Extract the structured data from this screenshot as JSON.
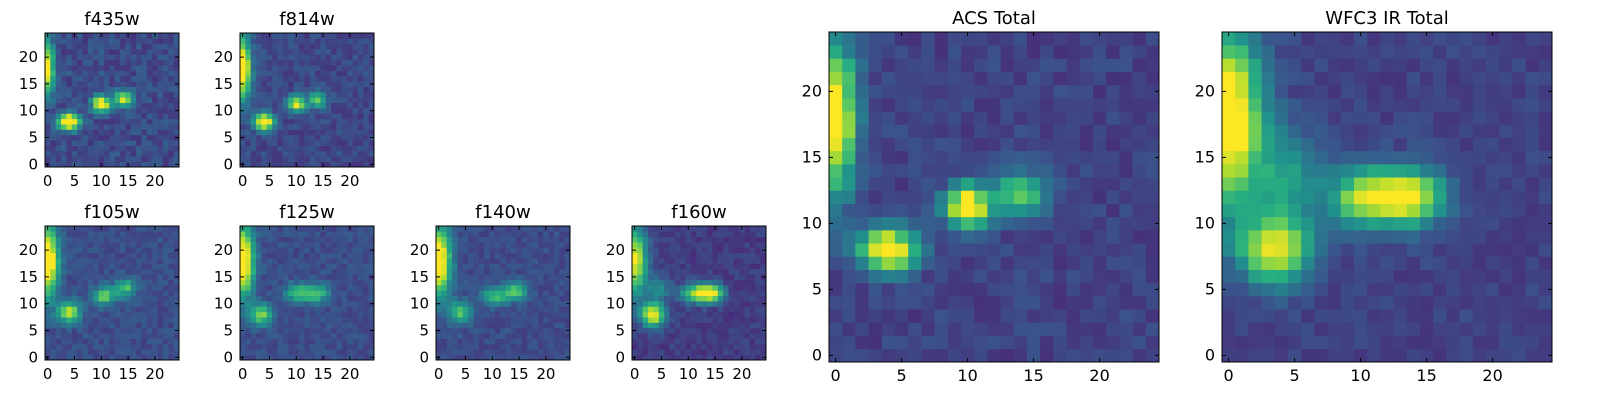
{
  "figure": {
    "colormap": "viridis",
    "colormap_stops": [
      "#440154",
      "#472d7b",
      "#3b528b",
      "#2c728e",
      "#21918c",
      "#28ae80",
      "#5ec962",
      "#addc30",
      "#fde725"
    ]
  },
  "chart_data": [
    {
      "type": "heatmap",
      "title": "f435w",
      "grid_size": 25,
      "grid": false,
      "xticks": [
        "0",
        "5",
        "10",
        "15",
        "20"
      ],
      "yticks": [
        "0",
        "5",
        "10",
        "15",
        "20"
      ],
      "xlim": [
        0,
        25
      ],
      "ylim": [
        0,
        25
      ],
      "psf_sigma": 1.2,
      "background": 0.22,
      "noise": 0.08,
      "sources": [
        {
          "x": 4.5,
          "y": 8.5,
          "amp": 1.0,
          "sx": 1.4,
          "sy": 1.1
        },
        {
          "x": 10.5,
          "y": 11.8,
          "amp": 0.85,
          "sx": 1.2,
          "sy": 1.1
        },
        {
          "x": 14.5,
          "y": 12.8,
          "amp": 0.7,
          "sx": 1.2,
          "sy": 1.1
        },
        {
          "x": 0.3,
          "y": 18.5,
          "amp": 0.8,
          "sx": 1.0,
          "sy": 3.5
        }
      ]
    },
    {
      "type": "heatmap",
      "title": "f814w",
      "grid_size": 25,
      "grid": false,
      "xticks": [
        "0",
        "5",
        "10",
        "15",
        "20"
      ],
      "yticks": [
        "0",
        "5",
        "10",
        "15",
        "20"
      ],
      "xlim": [
        0,
        25
      ],
      "ylim": [
        0,
        25
      ],
      "psf_sigma": 1.2,
      "background": 0.22,
      "noise": 0.07,
      "sources": [
        {
          "x": 4.5,
          "y": 8.5,
          "amp": 0.95,
          "sx": 1.3,
          "sy": 1.1
        },
        {
          "x": 10.5,
          "y": 11.8,
          "amp": 0.75,
          "sx": 1.2,
          "sy": 1.1
        },
        {
          "x": 14.5,
          "y": 12.5,
          "amp": 0.55,
          "sx": 1.2,
          "sy": 1.1
        },
        {
          "x": 0.3,
          "y": 18.5,
          "amp": 1.0,
          "sx": 1.2,
          "sy": 4.0
        }
      ]
    },
    {
      "type": "heatmap",
      "title": "f105w",
      "grid_size": 25,
      "grid": false,
      "xticks": [
        "0",
        "5",
        "10",
        "15",
        "20"
      ],
      "yticks": [
        "0",
        "5",
        "10",
        "15",
        "20"
      ],
      "xlim": [
        0,
        25
      ],
      "ylim": [
        0,
        25
      ],
      "psf_sigma": 1.8,
      "background": 0.25,
      "noise": 0.06,
      "sources": [
        {
          "x": 4.5,
          "y": 9.0,
          "amp": 0.7,
          "sx": 1.5,
          "sy": 1.4
        },
        {
          "x": 11.0,
          "y": 12.0,
          "amp": 0.55,
          "sx": 1.5,
          "sy": 1.2
        },
        {
          "x": 15.0,
          "y": 13.5,
          "amp": 0.5,
          "sx": 1.4,
          "sy": 1.2
        },
        {
          "x": 0.5,
          "y": 18.5,
          "amp": 1.0,
          "sx": 1.4,
          "sy": 4.5
        }
      ]
    },
    {
      "type": "heatmap",
      "title": "f125w",
      "grid_size": 25,
      "grid": false,
      "xticks": [
        "0",
        "5",
        "10",
        "15",
        "20"
      ],
      "yticks": [
        "0",
        "5",
        "10",
        "15",
        "20"
      ],
      "xlim": [
        0,
        25
      ],
      "ylim": [
        0,
        25
      ],
      "psf_sigma": 1.8,
      "background": 0.25,
      "noise": 0.06,
      "sources": [
        {
          "x": 4.0,
          "y": 8.5,
          "amp": 0.6,
          "sx": 1.5,
          "sy": 1.4
        },
        {
          "x": 11.0,
          "y": 12.5,
          "amp": 0.5,
          "sx": 1.8,
          "sy": 1.2
        },
        {
          "x": 14.5,
          "y": 12.5,
          "amp": 0.45,
          "sx": 1.5,
          "sy": 1.2
        },
        {
          "x": 0.5,
          "y": 18.5,
          "amp": 1.0,
          "sx": 1.5,
          "sy": 4.5
        }
      ]
    },
    {
      "type": "heatmap",
      "title": "f140w",
      "grid_size": 25,
      "grid": false,
      "xticks": [
        "0",
        "5",
        "10",
        "15",
        "20"
      ],
      "yticks": [
        "0",
        "5",
        "10",
        "15",
        "20"
      ],
      "xlim": [
        0,
        25
      ],
      "ylim": [
        0,
        25
      ],
      "psf_sigma": 1.9,
      "background": 0.25,
      "noise": 0.06,
      "sources": [
        {
          "x": 4.5,
          "y": 9.0,
          "amp": 0.55,
          "sx": 1.6,
          "sy": 1.4
        },
        {
          "x": 11.0,
          "y": 12.0,
          "amp": 0.5,
          "sx": 1.8,
          "sy": 1.2
        },
        {
          "x": 15.0,
          "y": 13.0,
          "amp": 0.5,
          "sx": 1.5,
          "sy": 1.2
        },
        {
          "x": 0.5,
          "y": 18.5,
          "amp": 1.0,
          "sx": 1.6,
          "sy": 4.5
        }
      ]
    },
    {
      "type": "heatmap",
      "title": "f160w",
      "grid_size": 25,
      "grid": false,
      "xticks": [
        "0",
        "5",
        "10",
        "15",
        "20"
      ],
      "yticks": [
        "0",
        "5",
        "10",
        "15",
        "20"
      ],
      "xlim": [
        0,
        25
      ],
      "ylim": [
        0,
        25
      ],
      "psf_sigma": 2.0,
      "background": 0.2,
      "noise": 0.06,
      "sources": [
        {
          "x": 4.0,
          "y": 8.5,
          "amp": 0.95,
          "sx": 1.6,
          "sy": 1.6
        },
        {
          "x": 12.0,
          "y": 12.5,
          "amp": 0.8,
          "sx": 2.0,
          "sy": 1.2
        },
        {
          "x": 15.0,
          "y": 12.5,
          "amp": 0.75,
          "sx": 1.5,
          "sy": 1.2
        },
        {
          "x": 0.5,
          "y": 18.5,
          "amp": 0.9,
          "sx": 1.6,
          "sy": 4.5
        },
        {
          "x": 5.0,
          "y": 13.5,
          "amp": 0.35,
          "sx": 1.5,
          "sy": 1.5
        }
      ]
    },
    {
      "type": "heatmap",
      "title": "ACS Total",
      "grid_size": 25,
      "grid": false,
      "xticks": [
        "0",
        "5",
        "10",
        "15",
        "20"
      ],
      "yticks": [
        "0",
        "5",
        "10",
        "15",
        "20"
      ],
      "xlim": [
        0,
        25
      ],
      "ylim": [
        0,
        25
      ],
      "psf_sigma": 1.2,
      "background": 0.2,
      "noise": 0.06,
      "sources": [
        {
          "x": 4.5,
          "y": 8.5,
          "amp": 1.0,
          "sx": 1.5,
          "sy": 1.2
        },
        {
          "x": 10.5,
          "y": 11.8,
          "amp": 0.95,
          "sx": 1.2,
          "sy": 1.2
        },
        {
          "x": 14.5,
          "y": 12.8,
          "amp": 0.6,
          "sx": 1.4,
          "sy": 1.2
        },
        {
          "x": 0.4,
          "y": 18.5,
          "amp": 0.95,
          "sx": 1.2,
          "sy": 4.0
        }
      ]
    },
    {
      "type": "heatmap",
      "title": "WFC3 IR Total",
      "grid_size": 25,
      "grid": false,
      "xticks": [
        "0",
        "5",
        "10",
        "15",
        "20"
      ],
      "yticks": [
        "0",
        "5",
        "10",
        "15",
        "20"
      ],
      "xlim": [
        0,
        25
      ],
      "ylim": [
        0,
        25
      ],
      "psf_sigma": 2.0,
      "background": 0.2,
      "noise": 0.05,
      "sources": [
        {
          "x": 4.0,
          "y": 8.5,
          "amp": 0.8,
          "sx": 1.9,
          "sy": 1.8
        },
        {
          "x": 11.0,
          "y": 12.5,
          "amp": 0.75,
          "sx": 2.0,
          "sy": 1.5
        },
        {
          "x": 14.5,
          "y": 12.5,
          "amp": 0.7,
          "sx": 1.8,
          "sy": 1.5
        },
        {
          "x": 0.5,
          "y": 18.5,
          "amp": 1.0,
          "sx": 1.8,
          "sy": 4.5
        },
        {
          "x": 5.0,
          "y": 14.0,
          "amp": 0.35,
          "sx": 1.8,
          "sy": 2.5
        }
      ]
    }
  ]
}
